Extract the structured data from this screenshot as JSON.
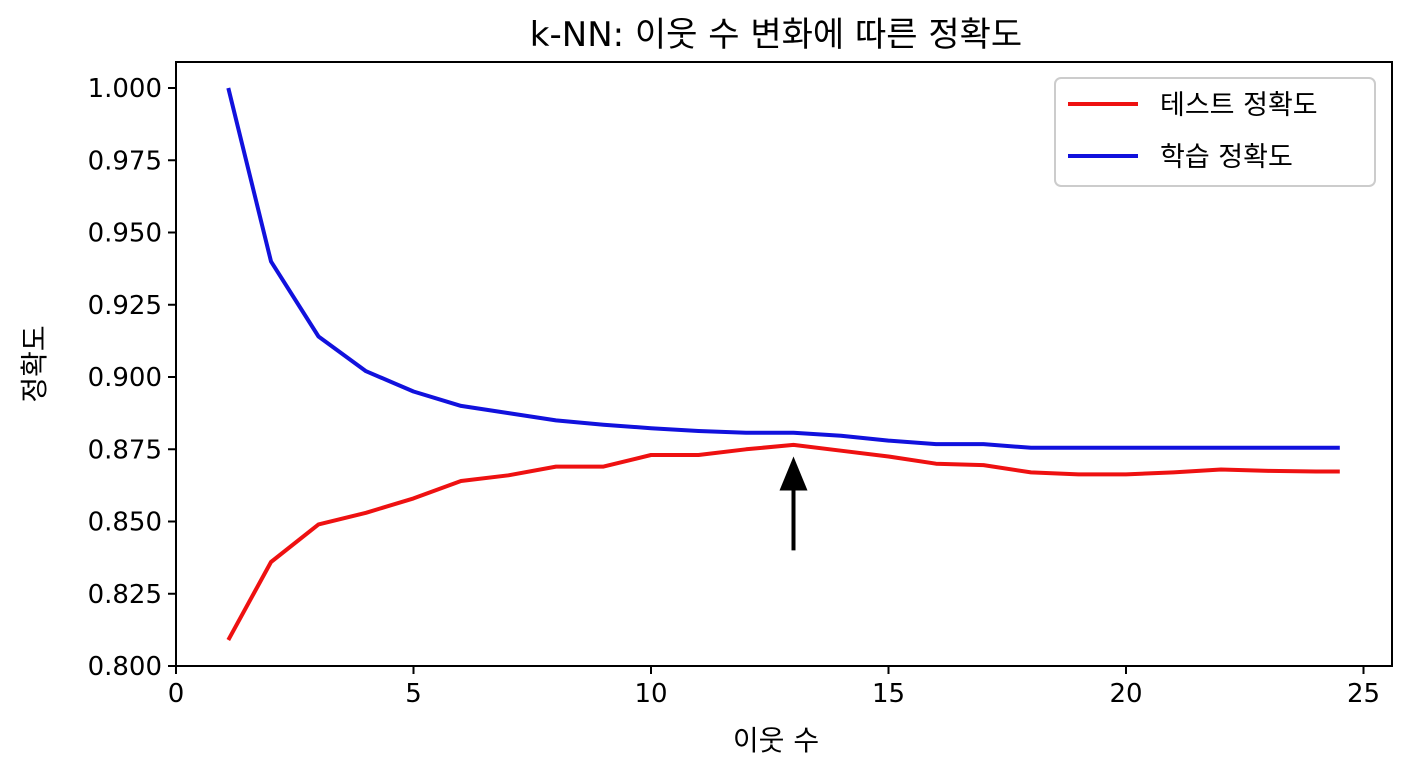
{
  "chart_data": {
    "type": "line",
    "title": "k-NN: 이웃 수 변화에 따른 정확도",
    "xlabel": "이웃 수",
    "ylabel": "정확도",
    "xlim": [
      0,
      25.6
    ],
    "ylim": [
      0.8,
      1.009
    ],
    "xticks": [
      "0",
      "5",
      "10",
      "15",
      "20",
      "25"
    ],
    "xtick_values": [
      0,
      5,
      10,
      15,
      20,
      25
    ],
    "yticks": [
      "0.800",
      "0.825",
      "0.850",
      "0.875",
      "0.900",
      "0.925",
      "0.950",
      "0.975",
      "1.000"
    ],
    "ytick_values": [
      0.8,
      0.825,
      0.85,
      0.875,
      0.9,
      0.925,
      0.95,
      0.975,
      1.0
    ],
    "legend_position": "top-right",
    "grid": false,
    "series": [
      {
        "name": "테스트 정확도",
        "color": "#ee1111",
        "x": [
          1.1,
          2,
          3,
          4,
          5,
          6,
          7,
          8,
          9,
          10,
          11,
          12,
          13,
          14,
          15,
          16,
          17,
          18,
          19,
          20,
          21,
          22,
          23,
          24,
          24.5
        ],
        "values": [
          0.809,
          0.836,
          0.849,
          0.853,
          0.858,
          0.864,
          0.866,
          0.869,
          0.869,
          0.873,
          0.873,
          0.875,
          0.8765,
          0.8745,
          0.8725,
          0.87,
          0.8695,
          0.867,
          0.8663,
          0.8663,
          0.867,
          0.868,
          0.8675,
          0.8673,
          0.8673
        ]
      },
      {
        "name": "학습 정확도",
        "color": "#1111dd",
        "x": [
          1.1,
          2,
          3,
          4,
          5,
          6,
          7,
          8,
          9,
          10,
          11,
          12,
          13,
          14,
          15,
          16,
          17,
          18,
          19,
          20,
          21,
          22,
          23,
          24,
          24.5
        ],
        "values": [
          1.0,
          0.94,
          0.914,
          0.902,
          0.895,
          0.89,
          0.8875,
          0.885,
          0.8835,
          0.8823,
          0.8813,
          0.8807,
          0.8807,
          0.8797,
          0.878,
          0.8768,
          0.8768,
          0.8755,
          0.8755,
          0.8755,
          0.8755,
          0.8755,
          0.8755,
          0.8755,
          0.8755
        ]
      }
    ],
    "annotations": [
      {
        "type": "arrow",
        "x": 13,
        "y_from": 0.84,
        "y_to": 0.8725,
        "color": "#000000"
      }
    ]
  }
}
